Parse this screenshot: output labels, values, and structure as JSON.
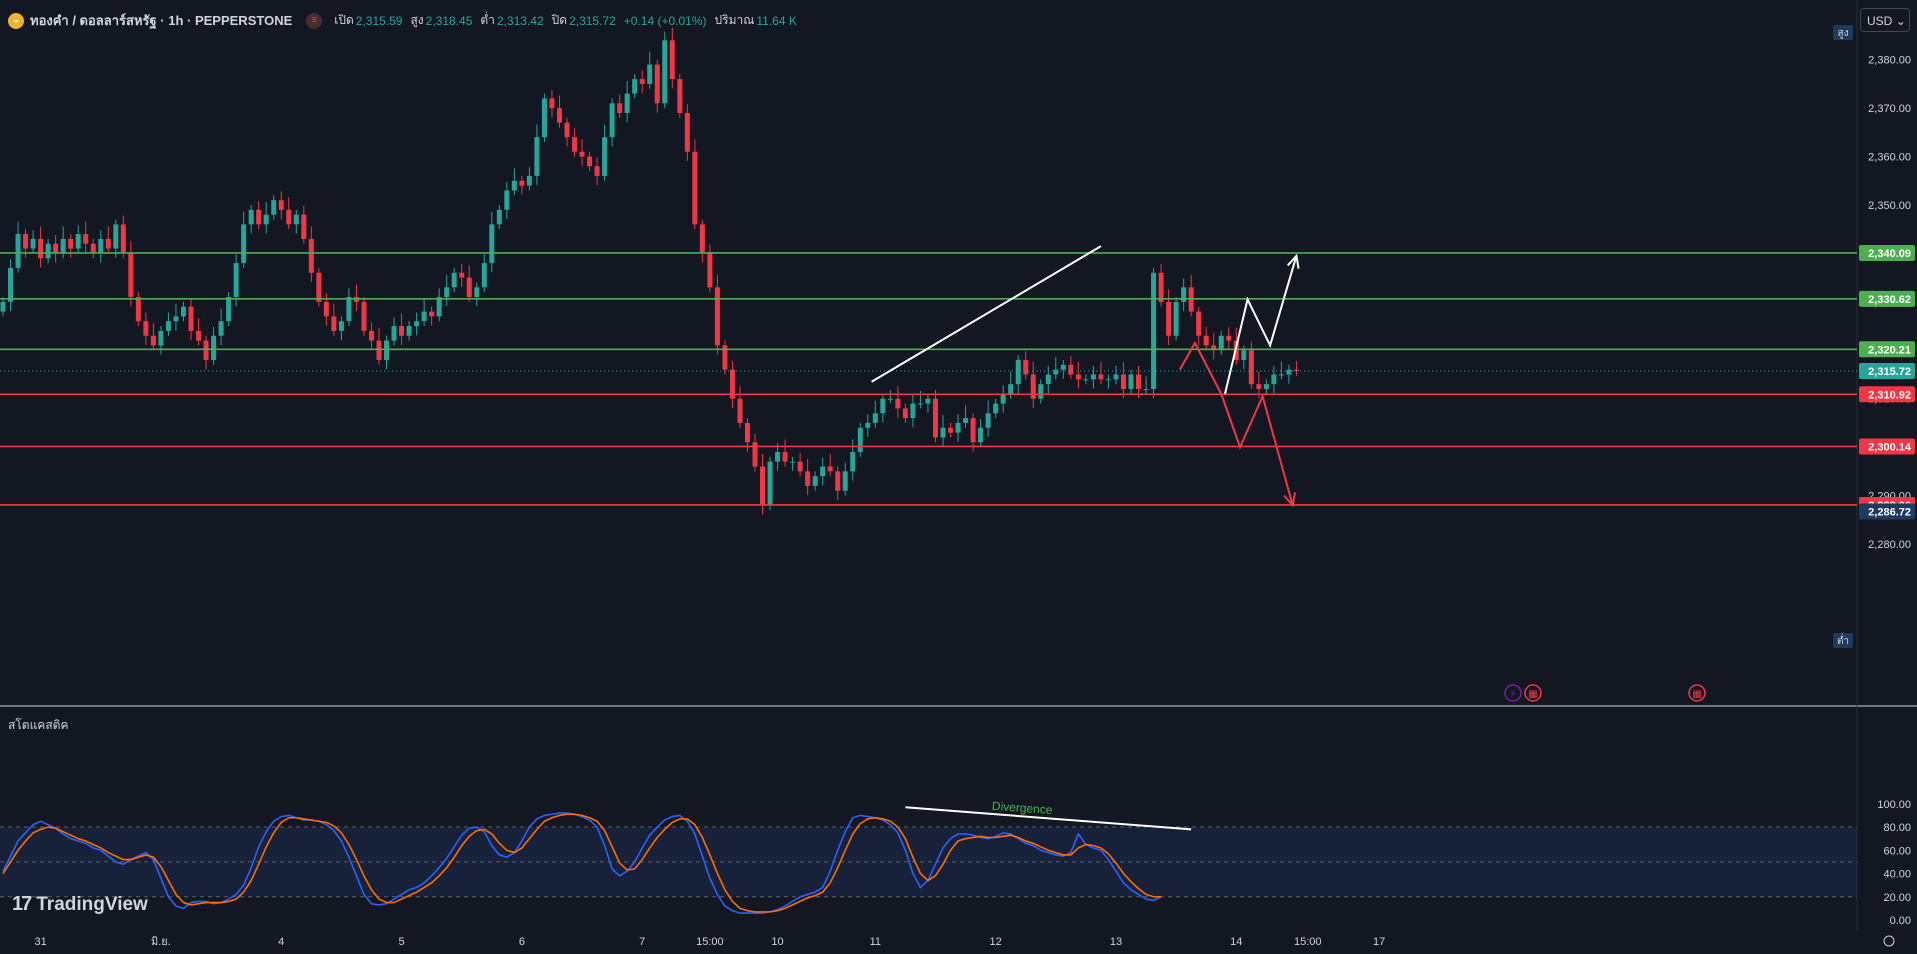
{
  "header": {
    "symbol": "ทองคำ / ดอลลาร์สหรัฐ · 1h · PEPPERSTONE",
    "open_label": "เปิด",
    "open": "2,315.59",
    "high_label": "สูง",
    "high": "2,318.45",
    "low_label": "ต่ำ",
    "low": "2,313.42",
    "close_label": "ปิด",
    "close": "2,315.72",
    "change": "+0.14 (+0.01%)",
    "volume_label": "ปริมาณ",
    "volume": "11.64 K"
  },
  "currency_selector": "USD",
  "high_marker": "สูง",
  "low_marker": "ต่ำ",
  "branding": "TradingView",
  "colors": {
    "background": "#131722",
    "up": "#26a69a",
    "down": "#f23645",
    "resistance": "#4caf50",
    "support": "#f23645",
    "stoch_k": "#2962ff",
    "stoch_d": "#ff6d00",
    "divergence_text": "#4caf50"
  },
  "chart_data": [
    {
      "type": "candlestick",
      "title": "ทองคำ / ดอลลาร์สหรัฐ · 1h · PEPPERSTONE",
      "ylim": [
        2276,
        2390
      ],
      "yticks": [
        2280,
        2290,
        2300,
        2310,
        2320,
        2330,
        2340,
        2350,
        2360,
        2370,
        2380
      ],
      "ytick_labels": [
        "2,280.00",
        "2,290.00",
        "2,300.00",
        "2,310.00",
        "2,320.00",
        "2,330.00",
        "2,340.00",
        "2,350.00",
        "2,360.00",
        "2,370.00",
        "2,380.00"
      ],
      "x_labels": [
        {
          "label": "31",
          "bar": 5
        },
        {
          "label": "มิ.ย.",
          "bar": 21
        },
        {
          "label": "4",
          "bar": 37
        },
        {
          "label": "5",
          "bar": 53
        },
        {
          "label": "6",
          "bar": 69
        },
        {
          "label": "7",
          "bar": 85
        },
        {
          "label": "15:00",
          "bar": 94
        },
        {
          "label": "10",
          "bar": 103
        },
        {
          "label": "11",
          "bar": 116
        },
        {
          "label": "12",
          "bar": 132
        },
        {
          "label": "13",
          "bar": 148
        },
        {
          "label": "14",
          "bar": 164
        },
        {
          "label": "15:00",
          "bar": 173.5
        },
        {
          "label": "17",
          "bar": 183
        }
      ],
      "closes": [
        2330,
        2337,
        2344,
        2341,
        2343,
        2339,
        2342,
        2340,
        2343,
        2341,
        2344,
        2342,
        2340,
        2343,
        2341,
        2346,
        2340,
        2331,
        2326,
        2323,
        2321,
        2324,
        2326,
        2327,
        2329,
        2324,
        2322,
        2318,
        2323,
        2326,
        2331,
        2338,
        2346,
        2349,
        2346,
        2348,
        2351,
        2349,
        2346,
        2348,
        2343,
        2336,
        2330,
        2327,
        2324,
        2326,
        2331,
        2330,
        2324,
        2322,
        2318,
        2322,
        2325,
        2323,
        2325,
        2326,
        2328,
        2327,
        2331,
        2333,
        2336,
        2335,
        2331,
        2333,
        2338,
        2346,
        2349,
        2353,
        2355,
        2354,
        2356,
        2364,
        2372,
        2370,
        2367,
        2364,
        2361,
        2360,
        2358,
        2356,
        2364,
        2371,
        2369,
        2373,
        2376,
        2375,
        2379,
        2371,
        2384,
        2376,
        2369,
        2361,
        2346,
        2340,
        2333,
        2321,
        2316,
        2310,
        2305,
        2301,
        2296,
        2288,
        2297,
        2299,
        2297,
        2297,
        2295,
        2292,
        2294,
        2296,
        2295,
        2291,
        2295,
        2299,
        2304,
        2305,
        2307,
        2310,
        2310,
        2308,
        2306,
        2309,
        2309,
        2310,
        2302,
        2304,
        2303,
        2305,
        2306,
        2301,
        2304,
        2307,
        2309,
        2311,
        2313,
        2318,
        2315,
        2310,
        2313,
        2315,
        2316,
        2317,
        2315,
        2314,
        2314,
        2315,
        2314,
        2314,
        2315,
        2312,
        2315,
        2312,
        2312,
        2336,
        2330,
        2323,
        2330,
        2333,
        2328,
        2323,
        2321,
        2320,
        2323,
        2322,
        2318,
        2320,
        2313,
        2312,
        2313,
        2315,
        2315,
        2316,
        2315.72
      ],
      "overlays": {
        "resistance_levels": [
          {
            "value": 2340.09,
            "label": "2,340.09"
          },
          {
            "value": 2330.62,
            "label": "2,330.62"
          },
          {
            "value": 2320.21,
            "label": "2,320.21"
          }
        ],
        "support_levels": [
          {
            "value": 2310.92,
            "label": "2,310.92"
          },
          {
            "value": 2300.14,
            "label": "2,300.14"
          },
          {
            "value": 2288.06,
            "label": "2,288.06"
          }
        ],
        "current_price": {
          "value": 2315.72,
          "label": "2,315.72"
        },
        "low_price": {
          "value": 2286.72,
          "label": "2,286.72"
        },
        "trendline": [
          [
            115.5,
            2313.5
          ],
          [
            146,
            2341.5
          ]
        ],
        "bull_path": [
          [
            162.5,
            2311
          ],
          [
            165.5,
            2330.5
          ],
          [
            168.5,
            2321
          ],
          [
            172,
            2339.5
          ]
        ],
        "bear_path": [
          [
            156.5,
            2316
          ],
          [
            158.5,
            2321.5
          ],
          [
            162,
            2311
          ],
          [
            164.5,
            2300
          ],
          [
            167.5,
            2310.5
          ],
          [
            171.5,
            2288
          ]
        ]
      }
    },
    {
      "type": "line",
      "title": "สโตแคสติค",
      "ylim": [
        0,
        100
      ],
      "yticks": [
        0,
        20,
        40,
        60,
        80,
        100
      ],
      "ytick_labels": [
        "0.00",
        "20.00",
        "40.00",
        "60.00",
        "80.00",
        "100.00"
      ],
      "bands": [
        20,
        50,
        80
      ],
      "series": [
        {
          "values": [
            42,
            55,
            68,
            75,
            82,
            85,
            82,
            79,
            74,
            70,
            68,
            66,
            62,
            60,
            55,
            50,
            48,
            52,
            55,
            58,
            52,
            36,
            20,
            12,
            10,
            15,
            16,
            16,
            14,
            15,
            18,
            22,
            30,
            45,
            63,
            76,
            85,
            89,
            90,
            88,
            86,
            86,
            85,
            82,
            77,
            68,
            54,
            38,
            22,
            14,
            13,
            14,
            18,
            22,
            26,
            28,
            32,
            38,
            45,
            53,
            63,
            73,
            79,
            80,
            76,
            64,
            56,
            54,
            58,
            68,
            80,
            87,
            90,
            91,
            92,
            92,
            91,
            89,
            86,
            80,
            64,
            44,
            38,
            42,
            50,
            62,
            73,
            80,
            86,
            89,
            90,
            85,
            74,
            55,
            36,
            22,
            12,
            8,
            6,
            6,
            6,
            6,
            7,
            9,
            12,
            16,
            20,
            22,
            24,
            28,
            42,
            60,
            76,
            88,
            90,
            89,
            88,
            86,
            82,
            75,
            60,
            40,
            28,
            34,
            48,
            62,
            70,
            74,
            74,
            73,
            71,
            70,
            72,
            75,
            74,
            70,
            66,
            64,
            60,
            58,
            56,
            55,
            58,
            74,
            65,
            62,
            60,
            52,
            42,
            32,
            26,
            22,
            18,
            17,
            20
          ]
        },
        {
          "values": [
            40,
            50,
            60,
            68,
            75,
            78,
            80,
            79,
            76,
            73,
            70,
            68,
            65,
            62,
            58,
            55,
            52,
            52,
            54,
            56,
            54,
            46,
            34,
            22,
            15,
            13,
            14,
            15,
            15,
            15,
            16,
            18,
            24,
            34,
            48,
            63,
            75,
            84,
            88,
            88,
            87,
            86,
            85,
            84,
            81,
            75,
            65,
            52,
            38,
            26,
            18,
            15,
            15,
            18,
            21,
            24,
            28,
            32,
            38,
            45,
            54,
            64,
            72,
            77,
            78,
            74,
            66,
            60,
            58,
            62,
            70,
            78,
            85,
            88,
            90,
            91,
            91,
            90,
            88,
            85,
            77,
            63,
            49,
            43,
            44,
            52,
            62,
            71,
            78,
            84,
            87,
            87,
            82,
            71,
            56,
            40,
            26,
            16,
            10,
            8,
            7,
            7,
            7,
            8,
            10,
            13,
            16,
            19,
            21,
            24,
            32,
            45,
            60,
            74,
            83,
            87,
            88,
            87,
            85,
            80,
            70,
            54,
            40,
            34,
            38,
            48,
            60,
            68,
            70,
            71,
            72,
            71,
            71,
            72,
            73,
            71,
            68,
            66,
            63,
            60,
            58,
            56,
            56,
            62,
            65,
            64,
            62,
            57,
            49,
            40,
            33,
            27,
            22,
            20,
            20
          ]
        }
      ],
      "annotation": "Divergence"
    }
  ]
}
